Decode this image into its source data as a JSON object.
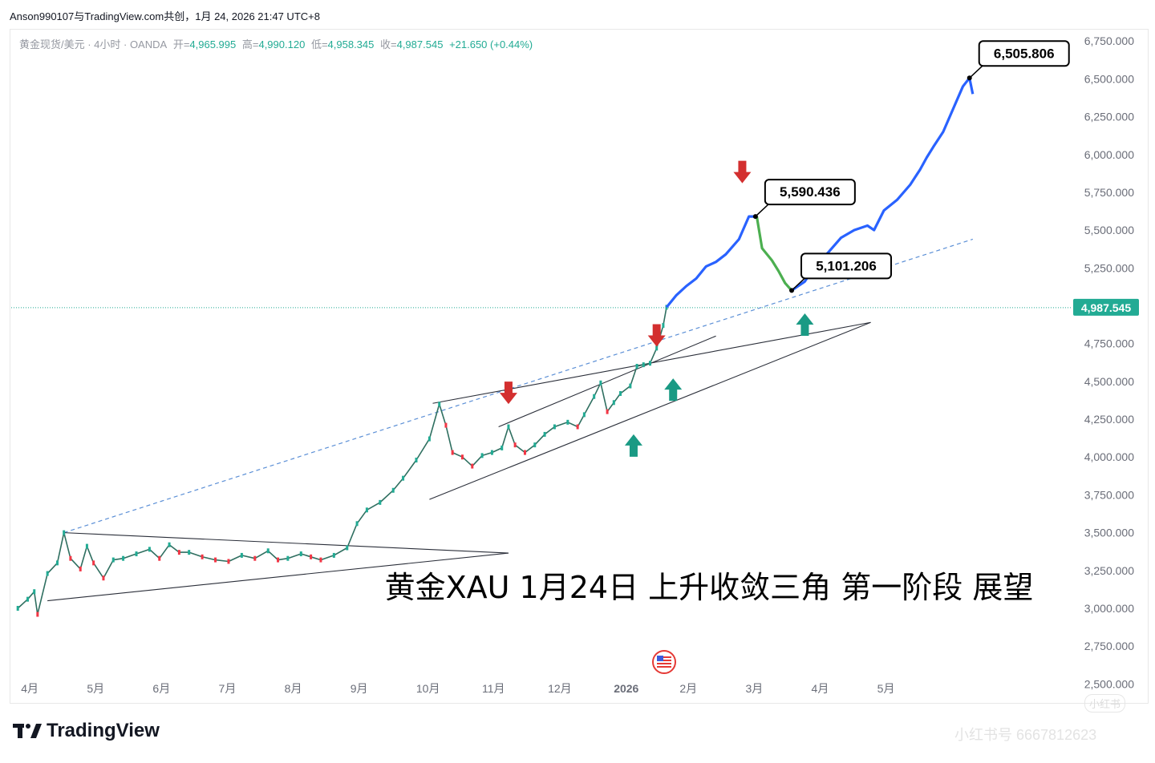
{
  "header": {
    "attribution": "Anson990107与TradingView.com共创，1月 24, 2026 21:47 UTC+8"
  },
  "legend": {
    "symbol": "黄金现货/美元 · 4小时 · OANDA",
    "open_label": "开=",
    "open": "4,965.995",
    "high_label": "高=",
    "high": "4,990.120",
    "low_label": "低=",
    "low": "4,958.345",
    "close_label": "收=",
    "close": "4,987.545",
    "change": "+21.650 (+0.44%)"
  },
  "colors": {
    "up": "#22ab94",
    "down": "#f23645",
    "projection_up": "#2962ff",
    "projection_down": "#4caf50",
    "trend_dashed": "#5b8fd6",
    "price_tag": "#22ab94",
    "arrow_red": "#d32f2f",
    "arrow_green": "#1a9a84"
  },
  "chart_data": {
    "type": "line",
    "title": "黄金XAU 1月24日 上升收敛三角 第一阶段 展望",
    "y_axis_ticks": [
      "6,750.000",
      "6,500.000",
      "6,250.000",
      "6,000.000",
      "5,750.000",
      "5,500.000",
      "5,250.000",
      "5,000.000",
      "4,750.000",
      "4,500.000",
      "4,250.000",
      "4,000.000",
      "3,750.000",
      "3,500.000",
      "3,250.000",
      "3,000.000",
      "2,750.000",
      "2,500.000"
    ],
    "y_axis_values": [
      6750,
      6500,
      6250,
      6000,
      5750,
      5500,
      5250,
      5000,
      4750,
      4500,
      4250,
      4000,
      3750,
      3500,
      3250,
      3000,
      2750,
      2500
    ],
    "ylim": [
      2380,
      6820
    ],
    "x_axis_ticks": [
      "4月",
      "5月",
      "6月",
      "7月",
      "8月",
      "9月",
      "10月",
      "11月",
      "12月",
      "2026",
      "2月",
      "3月",
      "4月",
      "5月"
    ],
    "x_axis_month_index": [
      0,
      1,
      2,
      3,
      4,
      5,
      6,
      7,
      8,
      9,
      10,
      11,
      12,
      13
    ],
    "xlim": [
      -0.1,
      16.0
    ],
    "current_price": 4987.545,
    "current_price_label": "4,987.545",
    "series": [
      {
        "role": "historical",
        "points": [
          [
            0.0,
            3000
          ],
          [
            0.15,
            3060
          ],
          [
            0.25,
            3110
          ],
          [
            0.3,
            2960
          ],
          [
            0.45,
            3230
          ],
          [
            0.6,
            3300
          ],
          [
            0.7,
            3500
          ],
          [
            0.8,
            3330
          ],
          [
            0.95,
            3260
          ],
          [
            1.05,
            3410
          ],
          [
            1.15,
            3300
          ],
          [
            1.3,
            3200
          ],
          [
            1.45,
            3320
          ],
          [
            1.6,
            3330
          ],
          [
            1.8,
            3360
          ],
          [
            2.0,
            3390
          ],
          [
            2.15,
            3330
          ],
          [
            2.3,
            3420
          ],
          [
            2.45,
            3370
          ],
          [
            2.6,
            3370
          ],
          [
            2.8,
            3340
          ],
          [
            3.0,
            3320
          ],
          [
            3.2,
            3310
          ],
          [
            3.4,
            3350
          ],
          [
            3.6,
            3330
          ],
          [
            3.8,
            3380
          ],
          [
            3.95,
            3320
          ],
          [
            4.1,
            3330
          ],
          [
            4.3,
            3360
          ],
          [
            4.45,
            3340
          ],
          [
            4.6,
            3320
          ],
          [
            4.8,
            3350
          ],
          [
            5.0,
            3400
          ],
          [
            5.15,
            3560
          ],
          [
            5.3,
            3650
          ],
          [
            5.5,
            3700
          ],
          [
            5.7,
            3780
          ],
          [
            5.85,
            3860
          ],
          [
            6.05,
            3980
          ],
          [
            6.25,
            4120
          ],
          [
            6.4,
            4350
          ],
          [
            6.5,
            4210
          ],
          [
            6.6,
            4030
          ],
          [
            6.75,
            4000
          ],
          [
            6.9,
            3940
          ],
          [
            7.05,
            4010
          ],
          [
            7.2,
            4030
          ],
          [
            7.35,
            4060
          ],
          [
            7.45,
            4200
          ],
          [
            7.55,
            4080
          ],
          [
            7.7,
            4030
          ],
          [
            7.85,
            4080
          ],
          [
            8.0,
            4150
          ],
          [
            8.15,
            4200
          ],
          [
            8.35,
            4230
          ],
          [
            8.5,
            4200
          ],
          [
            8.6,
            4280
          ],
          [
            8.75,
            4400
          ],
          [
            8.85,
            4490
          ],
          [
            8.95,
            4300
          ],
          [
            9.05,
            4360
          ],
          [
            9.15,
            4420
          ],
          [
            9.3,
            4470
          ],
          [
            9.4,
            4600
          ],
          [
            9.5,
            4610
          ],
          [
            9.6,
            4620
          ],
          [
            9.7,
            4720
          ],
          [
            9.8,
            4870
          ],
          [
            9.85,
            4990
          ]
        ]
      },
      {
        "role": "projection-up",
        "points": [
          [
            9.85,
            4990
          ],
          [
            10.0,
            5070
          ],
          [
            10.15,
            5130
          ],
          [
            10.3,
            5180
          ],
          [
            10.45,
            5260
          ],
          [
            10.6,
            5290
          ],
          [
            10.75,
            5340
          ],
          [
            10.95,
            5440
          ],
          [
            11.1,
            5590
          ],
          [
            11.22,
            5590
          ]
        ]
      },
      {
        "role": "projection-down",
        "points": [
          [
            11.22,
            5590
          ],
          [
            11.3,
            5380
          ],
          [
            11.45,
            5300
          ],
          [
            11.55,
            5230
          ],
          [
            11.65,
            5150
          ],
          [
            11.75,
            5101
          ]
        ]
      },
      {
        "role": "projection-up",
        "points": [
          [
            11.75,
            5101
          ],
          [
            11.95,
            5160
          ],
          [
            12.1,
            5260
          ],
          [
            12.3,
            5350
          ],
          [
            12.5,
            5450
          ],
          [
            12.7,
            5500
          ],
          [
            12.9,
            5530
          ],
          [
            13.0,
            5500
          ],
          [
            13.15,
            5630
          ],
          [
            13.35,
            5700
          ],
          [
            13.55,
            5800
          ],
          [
            13.7,
            5900
          ],
          [
            13.8,
            5980
          ],
          [
            13.9,
            6050
          ],
          [
            14.05,
            6150
          ],
          [
            14.2,
            6300
          ],
          [
            14.35,
            6450
          ],
          [
            14.45,
            6506
          ],
          [
            14.5,
            6400
          ]
        ]
      }
    ],
    "annotations": [
      {
        "label": "5,590.436",
        "x": 11.2,
        "y": 5590.436
      },
      {
        "label": "5,101.206",
        "x": 11.75,
        "y": 5101.206
      },
      {
        "label": "6,505.806",
        "x": 14.45,
        "y": 6505.806
      }
    ],
    "trendlines": [
      {
        "kind": "dashed",
        "from": [
          0.7,
          3500
        ],
        "to": [
          14.5,
          5440
        ]
      },
      {
        "kind": "solid",
        "from": [
          0.7,
          3500
        ],
        "to": [
          7.45,
          3365
        ]
      },
      {
        "kind": "solid",
        "from": [
          0.45,
          3050
        ],
        "to": [
          7.45,
          3365
        ]
      },
      {
        "kind": "solid",
        "from": [
          6.25,
          3720
        ],
        "to": [
          12.95,
          4890
        ]
      },
      {
        "kind": "solid",
        "from": [
          6.3,
          4355
        ],
        "to": [
          12.95,
          4890
        ]
      },
      {
        "kind": "solid",
        "from": [
          7.3,
          4200
        ],
        "to": [
          10.6,
          4800
        ]
      }
    ],
    "arrows": [
      {
        "dir": "down",
        "color": "red",
        "x": 7.45,
        "y": 4350
      },
      {
        "dir": "down",
        "color": "red",
        "x": 9.7,
        "y": 4730
      },
      {
        "dir": "down",
        "color": "red",
        "x": 11.0,
        "y": 5810
      },
      {
        "dir": "up",
        "color": "green",
        "x": 9.35,
        "y": 4150
      },
      {
        "dir": "up",
        "color": "green",
        "x": 9.95,
        "y": 4520
      },
      {
        "dir": "up",
        "color": "green",
        "x": 11.95,
        "y": 4950
      }
    ]
  },
  "footer": {
    "brand": "TradingView",
    "watermark": "小红书号 6667812623",
    "watermark_small": "小红书"
  }
}
